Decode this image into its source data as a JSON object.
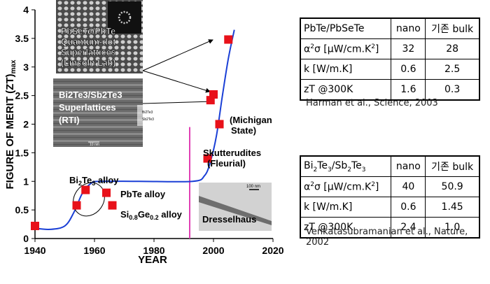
{
  "chart_data": {
    "type": "scatter",
    "ylabel": "FIGURE OF MERIT (ZT)",
    "ylabel_sub": "max",
    "xlabel": "YEAR",
    "xlim": [
      1940,
      2020
    ],
    "ylim": [
      0,
      4
    ],
    "x_ticks": [
      "1940",
      "1960",
      "1980",
      "2000",
      "2020"
    ],
    "y_ticks": [
      "0",
      "0.5",
      "1",
      "1.5",
      "2",
      "2.5",
      "3",
      "3.5",
      "4"
    ],
    "points": [
      {
        "x": 1940,
        "y": 0.22
      },
      {
        "x": 1954,
        "y": 0.58
      },
      {
        "x": 1957,
        "y": 0.85
      },
      {
        "x": 1964,
        "y": 0.8
      },
      {
        "x": 1966,
        "y": 0.58
      },
      {
        "x": 1998,
        "y": 1.4
      },
      {
        "x": 1999,
        "y": 2.42
      },
      {
        "x": 2000,
        "y": 2.52
      },
      {
        "x": 2002,
        "y": 2.0
      },
      {
        "x": 2005,
        "y": 3.48
      }
    ],
    "curve": [
      [
        1940,
        0.18
      ],
      [
        1945,
        0.16
      ],
      [
        1950,
        0.22
      ],
      [
        1953,
        0.45
      ],
      [
        1956,
        0.8
      ],
      [
        1959,
        0.97
      ],
      [
        1962,
        1.0
      ],
      [
        1975,
        1.0
      ],
      [
        1993,
        1.0
      ],
      [
        1997,
        1.1
      ],
      [
        1999,
        1.35
      ],
      [
        2001,
        1.8
      ],
      [
        2003,
        2.5
      ],
      [
        2005,
        3.15
      ],
      [
        2007,
        3.65
      ]
    ],
    "divider_year": 1992,
    "annotations": {
      "bi2te3_alloy": "Bi2Te3 alloy",
      "pbte_alloy": "PbTe alloy",
      "sige_alloy": "Si0.8Ge0.2 alloy",
      "michigan": [
        "(Michigan",
        "State)"
      ],
      "skutterudites": [
        "Skutterudites",
        "(Fleurial)"
      ],
      "pbsete_inset": [
        "PbSeTe/PbTe",
        "Quantum-dot",
        "Superlattices",
        "(Lincoln Lab)"
      ],
      "bi2te3_inset": [
        "Bi2Te3/Sb2Te3",
        "Superlattices",
        "(RTI)"
      ],
      "bi2te3_inset_small": [
        "Bi2Te3",
        "Sb2Te3"
      ],
      "scale_small": "10 nm",
      "dresselhaus_scale": "100 nm",
      "dresselhaus": "Dresselhaus"
    },
    "colors": {
      "marker": "#e8111a",
      "curve": "#1a3fd6",
      "divider": "#e040b4"
    }
  },
  "table1": {
    "header": [
      "PbTe/PbSeTe",
      "nano",
      "기존 bulk"
    ],
    "rows": [
      [
        "α²σ [μW/cm.K²]",
        "32",
        "28"
      ],
      [
        "k [W/m.K]",
        "0.6",
        "2.5"
      ],
      [
        "zT @300K",
        "1.6",
        "0.3"
      ]
    ],
    "caption": "Harman et al., Science, 2003"
  },
  "table2": {
    "header": [
      "Bi2Te3/Sb2Te3",
      "nano",
      "기존 bulk"
    ],
    "rows": [
      [
        "α²σ [μW/cm.K²]",
        "40",
        "50.9"
      ],
      [
        "k [W/m.K]",
        "0.6",
        "1.45"
      ],
      [
        "zT @300K",
        "2.4",
        "1.0"
      ]
    ],
    "caption": "Venkatasubramanian et al., Nature, 2002"
  }
}
